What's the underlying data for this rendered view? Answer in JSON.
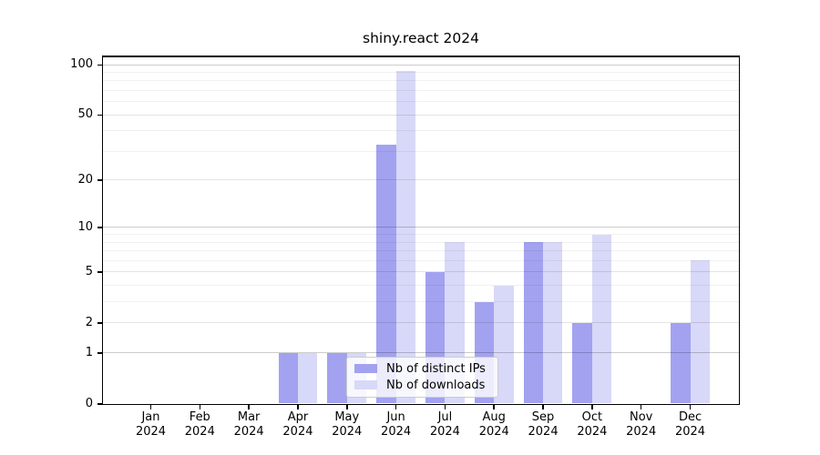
{
  "title": "shiny.react 2024",
  "legend": {
    "items": [
      {
        "label": "Nb of distinct IPs",
        "color": "#a2a2f0"
      },
      {
        "label": "Nb of downloads",
        "color": "#d8d8f8"
      }
    ]
  },
  "chart_data": {
    "type": "bar",
    "title": "shiny.react 2024",
    "categories": [
      "Jan",
      "Feb",
      "Mar",
      "Apr",
      "May",
      "Jun",
      "Jul",
      "Aug",
      "Sep",
      "Oct",
      "Nov",
      "Dec"
    ],
    "year": "2024",
    "series": [
      {
        "name": "Nb of distinct IPs",
        "color": "#a2a2f0",
        "values": [
          0,
          0,
          0,
          1,
          1,
          33,
          5,
          3,
          8,
          2,
          0,
          2
        ]
      },
      {
        "name": "Nb of downloads",
        "color": "#d8d8f8",
        "values": [
          0,
          0,
          0,
          1,
          1,
          92,
          8,
          4,
          8,
          9,
          0,
          6
        ]
      }
    ],
    "yscale": "log1p",
    "ylim": [
      0,
      100
    ],
    "y_ticks": [
      100,
      50,
      20,
      10,
      5,
      2,
      1,
      0
    ],
    "y_minor_ticks": [
      3,
      4,
      6,
      7,
      8,
      9,
      30,
      40,
      60,
      70,
      80,
      90
    ],
    "grid": true,
    "legend_position": "lower center",
    "xlabel": "",
    "ylabel": ""
  }
}
